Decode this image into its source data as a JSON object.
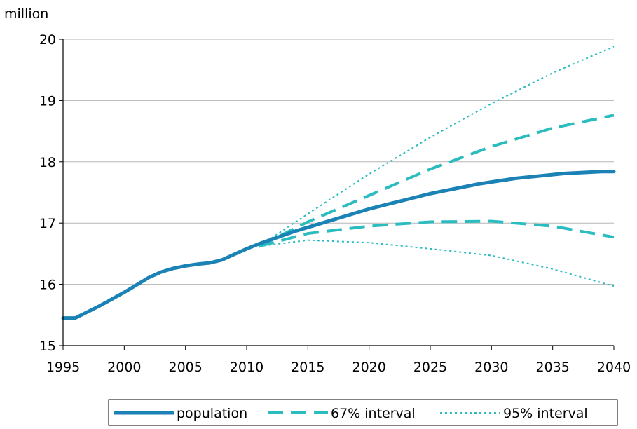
{
  "chart_data": {
    "type": "line",
    "title": "",
    "ylabel": "million",
    "xlabel": "",
    "xlim": [
      1995,
      2040
    ],
    "ylim": [
      15,
      20
    ],
    "x_ticks": [
      "1995",
      "2000",
      "2005",
      "2010",
      "2015",
      "2020",
      "2025",
      "2030",
      "2035",
      "2040"
    ],
    "y_ticks": [
      "15",
      "16",
      "17",
      "18",
      "19",
      "20"
    ],
    "grid": "horizontal",
    "legend_position": "bottom",
    "colors": {
      "population": "#1a82b5",
      "interval67": "#2bbcc0",
      "interval95": "#2bbcc0"
    },
    "series": [
      {
        "name": "population",
        "style": "solid",
        "x": [
          1995,
          1996,
          1997,
          1998,
          1999,
          2000,
          2001,
          2002,
          2003,
          2004,
          2005,
          2006,
          2007,
          2008,
          2009,
          2010,
          2011,
          2012,
          2013,
          2014,
          2015,
          2016,
          2017,
          2018,
          2019,
          2020,
          2021,
          2022,
          2023,
          2024,
          2025,
          2026,
          2027,
          2028,
          2029,
          2030,
          2031,
          2032,
          2033,
          2034,
          2035,
          2036,
          2037,
          2038,
          2039,
          2040
        ],
        "y": [
          15.45,
          15.45,
          15.55,
          15.65,
          15.76,
          15.87,
          15.99,
          16.11,
          16.2,
          16.26,
          16.3,
          16.33,
          16.35,
          16.4,
          16.49,
          16.58,
          16.66,
          16.73,
          16.8,
          16.87,
          16.93,
          16.99,
          17.05,
          17.11,
          17.17,
          17.23,
          17.28,
          17.33,
          17.38,
          17.43,
          17.48,
          17.52,
          17.56,
          17.6,
          17.64,
          17.67,
          17.7,
          17.73,
          17.75,
          17.77,
          17.79,
          17.81,
          17.82,
          17.83,
          17.84,
          17.84
        ]
      },
      {
        "name": "67% interval",
        "style": "dashed",
        "x": [
          2011,
          2015,
          2020,
          2025,
          2030,
          2035,
          2040
        ],
        "y": [
          16.62,
          17.02,
          17.45,
          17.88,
          18.25,
          18.55,
          18.76
        ]
      },
      {
        "name": "",
        "style": "dashed",
        "x": [
          2011,
          2015,
          2020,
          2025,
          2030,
          2035,
          2040
        ],
        "y": [
          16.62,
          16.83,
          16.95,
          17.02,
          17.03,
          16.95,
          16.77
        ]
      },
      {
        "name": "95% interval",
        "style": "dotted",
        "x": [
          2011,
          2015,
          2020,
          2025,
          2030,
          2035,
          2040
        ],
        "y": [
          16.62,
          17.15,
          17.8,
          18.4,
          18.95,
          19.45,
          19.88
        ]
      },
      {
        "name": "",
        "style": "dotted",
        "x": [
          2011,
          2015,
          2020,
          2025,
          2030,
          2035,
          2040
        ],
        "y": [
          16.62,
          16.72,
          16.68,
          16.58,
          16.47,
          16.25,
          15.97
        ]
      }
    ]
  }
}
